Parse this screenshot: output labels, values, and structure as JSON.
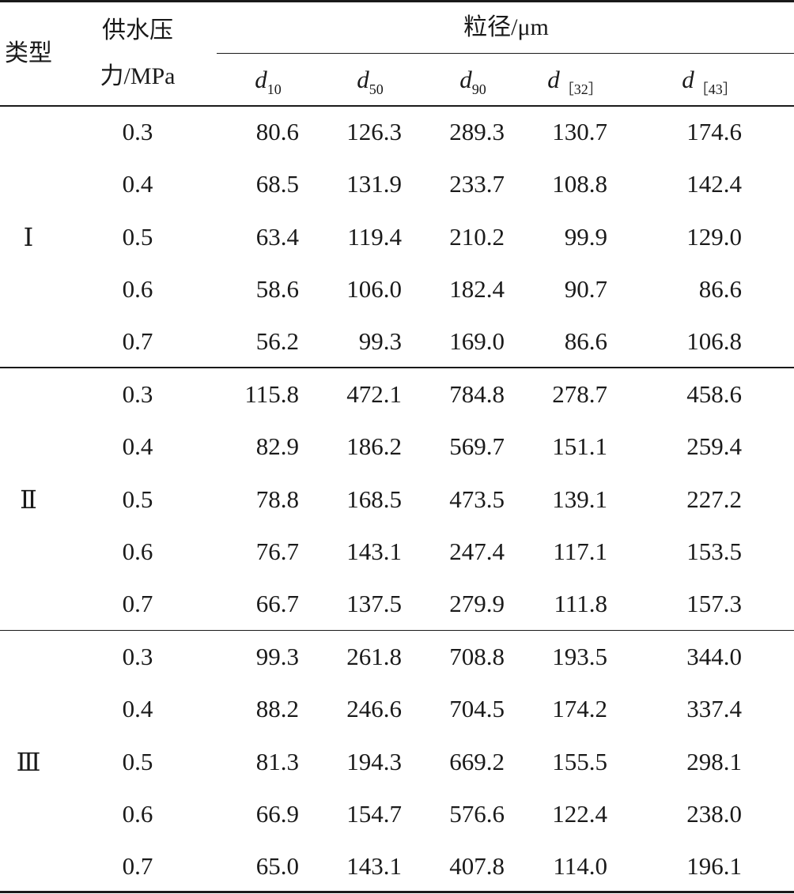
{
  "table": {
    "header": {
      "type_label": "类型",
      "pressure_label_line1": "供水压",
      "pressure_label_line2": "力/MPa",
      "size_group_label": "粒径/μm",
      "size_columns": [
        {
          "symbol": "d",
          "subscript": "10"
        },
        {
          "symbol": "d",
          "subscript": "50"
        },
        {
          "symbol": "d",
          "subscript": "90"
        },
        {
          "symbol": "d",
          "subscript": "［32］"
        },
        {
          "symbol": "d",
          "subscript": "［43］"
        }
      ]
    },
    "groups": [
      {
        "type": "Ⅰ",
        "rows": [
          {
            "pressure": "0.3",
            "d10": "80.6",
            "d50": "126.3",
            "d90": "289.3",
            "d32": "130.7",
            "d43": "174.6"
          },
          {
            "pressure": "0.4",
            "d10": "68.5",
            "d50": "131.9",
            "d90": "233.7",
            "d32": "108.8",
            "d43": "142.4"
          },
          {
            "pressure": "0.5",
            "d10": "63.4",
            "d50": "119.4",
            "d90": "210.2",
            "d32": "99.9",
            "d43": "129.0"
          },
          {
            "pressure": "0.6",
            "d10": "58.6",
            "d50": "106.0",
            "d90": "182.4",
            "d32": "90.7",
            "d43": "86.6"
          },
          {
            "pressure": "0.7",
            "d10": "56.2",
            "d50": "99.3",
            "d90": "169.0",
            "d32": "86.6",
            "d43": "106.8"
          }
        ]
      },
      {
        "type": "Ⅱ",
        "rows": [
          {
            "pressure": "0.3",
            "d10": "115.8",
            "d50": "472.1",
            "d90": "784.8",
            "d32": "278.7",
            "d43": "458.6"
          },
          {
            "pressure": "0.4",
            "d10": "82.9",
            "d50": "186.2",
            "d90": "569.7",
            "d32": "151.1",
            "d43": "259.4"
          },
          {
            "pressure": "0.5",
            "d10": "78.8",
            "d50": "168.5",
            "d90": "473.5",
            "d32": "139.1",
            "d43": "227.2"
          },
          {
            "pressure": "0.6",
            "d10": "76.7",
            "d50": "143.1",
            "d90": "247.4",
            "d32": "117.1",
            "d43": "153.5"
          },
          {
            "pressure": "0.7",
            "d10": "66.7",
            "d50": "137.5",
            "d90": "279.9",
            "d32": "111.8",
            "d43": "157.3"
          }
        ]
      },
      {
        "type": "Ⅲ",
        "rows": [
          {
            "pressure": "0.3",
            "d10": "99.3",
            "d50": "261.8",
            "d90": "708.8",
            "d32": "193.5",
            "d43": "344.0"
          },
          {
            "pressure": "0.4",
            "d10": "88.2",
            "d50": "246.6",
            "d90": "704.5",
            "d32": "174.2",
            "d43": "337.4"
          },
          {
            "pressure": "0.5",
            "d10": "81.3",
            "d50": "194.3",
            "d90": "669.2",
            "d32": "155.5",
            "d43": "298.1"
          },
          {
            "pressure": "0.6",
            "d10": "66.9",
            "d50": "154.7",
            "d90": "576.6",
            "d32": "122.4",
            "d43": "238.0"
          },
          {
            "pressure": "0.7",
            "d10": "65.0",
            "d50": "143.1",
            "d90": "407.8",
            "d32": "114.0",
            "d43": "196.1"
          }
        ]
      }
    ]
  }
}
